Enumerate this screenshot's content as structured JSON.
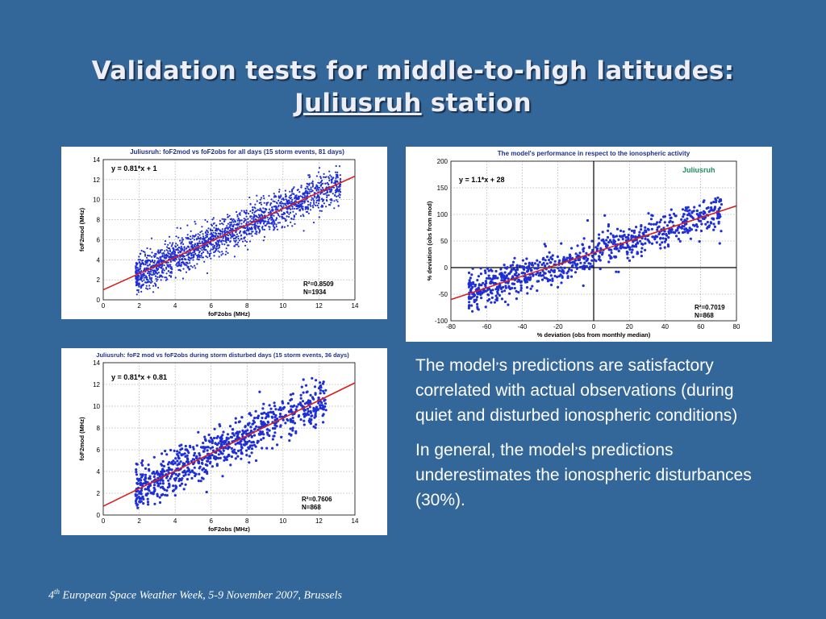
{
  "slide": {
    "title_line1": "Validation tests for middle-to-high latitudes:",
    "title_station": "Juliusruh",
    "title_suffix": " station",
    "paragraph1_before": "The model",
    "paragraph1_after": "s predictions are satisfactory correlated with actual observations (during quiet and disturbed ionospheric conditions)",
    "paragraph2_before": "In general, the model",
    "paragraph2_after": "s predictions underestimates the ionospheric disturbances (30%).",
    "apostrophe": "’",
    "footer_number": "4",
    "footer_suffix": "th",
    "footer_rest": " European Space Weather Week, 5-9 November 2007, Brussels"
  },
  "colors": {
    "background": "#336699",
    "points": "#1f2fd6",
    "fit_line": "#d62020",
    "chart_title": "#1f2f8f",
    "station_label": "#1f8f5f"
  },
  "chart_data": [
    {
      "id": "all-days",
      "type": "scatter",
      "title": "Juliusruh: foF2mod vs foF2obs for all days (15 storm events, 81 days)",
      "xlabel": "foF2obs (MHz)",
      "ylabel": "foF2mod (MHz)",
      "xlim": [
        0,
        14
      ],
      "ylim": [
        0,
        14
      ],
      "xticks": [
        0,
        2,
        4,
        6,
        8,
        10,
        12,
        14
      ],
      "yticks": [
        0,
        2,
        4,
        6,
        8,
        10,
        12,
        14
      ],
      "grid": true,
      "fit": {
        "slope": 0.81,
        "intercept": 1,
        "label": "y = 0.81*x + 1",
        "x_range": [
          0,
          14
        ]
      },
      "stats": [
        "R²=0.8509",
        "N=1934"
      ],
      "point_cloud": {
        "n": 1934,
        "x_range": [
          1.8,
          13.2
        ],
        "spread": 0.9
      }
    },
    {
      "id": "activity",
      "type": "scatter",
      "title": "The model's performance in respect to the ionospheric activity",
      "station_label": "Juliusruh",
      "xlabel": "% deviation (obs from monthly median)",
      "ylabel": "% deviation (obs from mod)",
      "xlim": [
        -80,
        80
      ],
      "ylim": [
        -100,
        200
      ],
      "xticks": [
        -80,
        -60,
        -40,
        -20,
        0,
        20,
        40,
        60,
        80
      ],
      "yticks": [
        -100,
        -50,
        0,
        50,
        100,
        150,
        200
      ],
      "grid": true,
      "zero_axes": true,
      "fit": {
        "slope": 1.1,
        "intercept": 28,
        "label": "y = 1.1*x + 28",
        "x_range": [
          -80,
          80
        ]
      },
      "stats": [
        "R²=0.7019",
        "N=868"
      ],
      "point_cloud": {
        "n": 868,
        "x_range": [
          -70,
          72
        ],
        "spread": 17
      }
    },
    {
      "id": "storm-days",
      "type": "scatter",
      "title": "Juliusruh: foF2 mod vs foF2obs during storm disturbed days (15 storm events, 36 days)",
      "xlabel": "foF2obs (MHz)",
      "ylabel": "foF2mod (MHz)",
      "xlim": [
        0,
        14
      ],
      "ylim": [
        0,
        14
      ],
      "xticks": [
        0,
        2,
        4,
        6,
        8,
        10,
        12,
        14
      ],
      "yticks": [
        0,
        2,
        4,
        6,
        8,
        10,
        12,
        14
      ],
      "grid": true,
      "fit": {
        "slope": 0.81,
        "intercept": 0.81,
        "label": "y = 0.81*x + 0.81",
        "x_range": [
          0,
          14
        ]
      },
      "stats": [
        "R²=0.7606",
        "N=868"
      ],
      "point_cloud": {
        "n": 868,
        "x_range": [
          1.8,
          12.4
        ],
        "spread": 1.0
      }
    }
  ]
}
